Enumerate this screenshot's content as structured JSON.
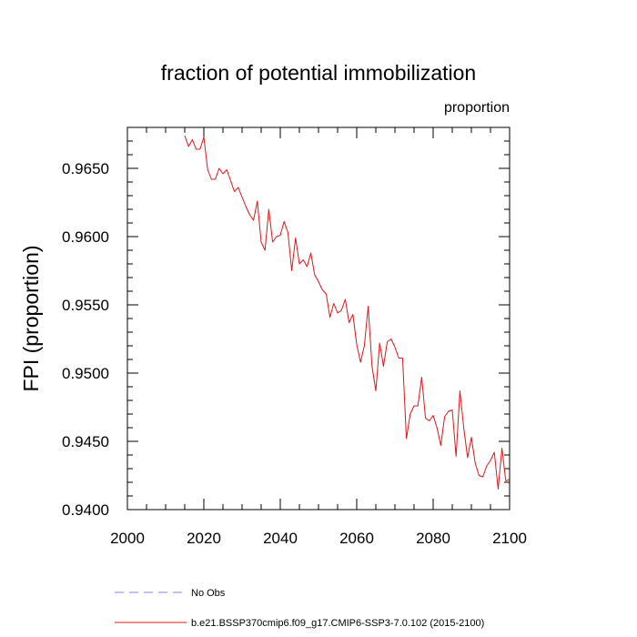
{
  "chart_data": {
    "type": "line",
    "title": "fraction of potential immobilization",
    "units_label": "proportion",
    "xlabel": "",
    "ylabel": "FPI  (proportion)",
    "xlim": [
      2000,
      2100
    ],
    "ylim": [
      0.94,
      0.968
    ],
    "x_ticks": [
      2000,
      2020,
      2040,
      2060,
      2080,
      2100
    ],
    "y_ticks": [
      0.94,
      0.945,
      0.95,
      0.955,
      0.96,
      0.965
    ],
    "y_tick_labels": [
      "0.9400",
      "0.9450",
      "0.9500",
      "0.9550",
      "0.9600",
      "0.9650"
    ],
    "grid": false,
    "legend": [
      {
        "label": "No Obs",
        "color": "#7f7ff0",
        "style": "dashed"
      },
      {
        "label": "b.e21.BSSP370cmip6.f09_g17.CMIP6-SSP3-7.0.102 (2015-2100)",
        "color": "#e0151b",
        "style": "solid"
      }
    ],
    "series": [
      {
        "name": "b.e21.BSSP370cmip6.f09_g17.CMIP6-SSP3-7.0.102 (2015-2100)",
        "color": "#e0151b",
        "x": [
          2015,
          2016,
          2017,
          2018,
          2019,
          2020,
          2021,
          2022,
          2023,
          2024,
          2025,
          2026,
          2027,
          2028,
          2029,
          2030,
          2031,
          2032,
          2033,
          2034,
          2035,
          2036,
          2037,
          2038,
          2039,
          2040,
          2041,
          2042,
          2043,
          2044,
          2045,
          2046,
          2047,
          2048,
          2049,
          2050,
          2051,
          2052,
          2053,
          2054,
          2055,
          2056,
          2057,
          2058,
          2059,
          2060,
          2061,
          2062,
          2063,
          2064,
          2065,
          2066,
          2067,
          2068,
          2069,
          2070,
          2071,
          2072,
          2073,
          2074,
          2075,
          2076,
          2077,
          2078,
          2079,
          2080,
          2081,
          2082,
          2083,
          2084,
          2085,
          2086,
          2087,
          2088,
          2089,
          2090,
          2091,
          2092,
          2093,
          2094,
          2095,
          2096,
          2097,
          2098,
          2099,
          2100
        ],
        "values": [
          0.9674,
          0.9666,
          0.9671,
          0.9664,
          0.9664,
          0.9673,
          0.9649,
          0.9642,
          0.9642,
          0.965,
          0.9646,
          0.9649,
          0.9641,
          0.9633,
          0.9636,
          0.9629,
          0.9622,
          0.9616,
          0.9612,
          0.9626,
          0.9596,
          0.959,
          0.962,
          0.9596,
          0.96,
          0.9601,
          0.9611,
          0.9603,
          0.9575,
          0.9599,
          0.958,
          0.9583,
          0.9578,
          0.9588,
          0.9572,
          0.9567,
          0.9561,
          0.9558,
          0.9541,
          0.9551,
          0.9544,
          0.9546,
          0.9554,
          0.9537,
          0.9543,
          0.9521,
          0.9508,
          0.952,
          0.9549,
          0.9505,
          0.9487,
          0.9522,
          0.9505,
          0.9523,
          0.9525,
          0.9519,
          0.9511,
          0.9511,
          0.9452,
          0.947,
          0.9476,
          0.9476,
          0.9497,
          0.9467,
          0.9465,
          0.9469,
          0.946,
          0.9447,
          0.9468,
          0.9472,
          0.9473,
          0.9439,
          0.9487,
          0.946,
          0.9438,
          0.9453,
          0.9434,
          0.9425,
          0.9424,
          0.9432,
          0.9436,
          0.9442,
          0.9415,
          0.9445,
          0.9421,
          0.9422
        ]
      }
    ]
  }
}
